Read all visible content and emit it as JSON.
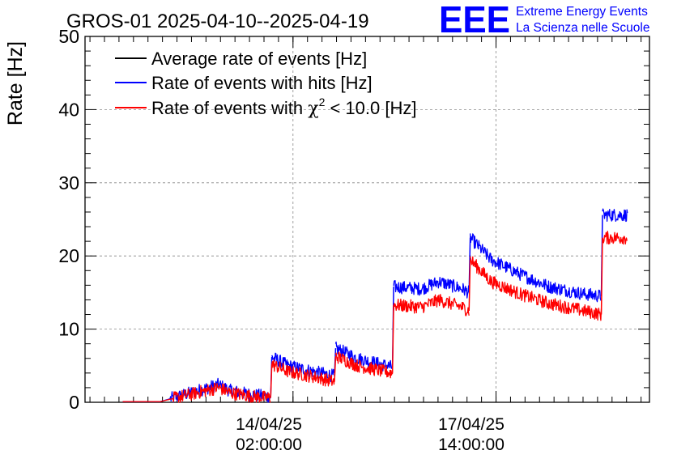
{
  "chart_data": {
    "type": "line",
    "title": "GROS-01 2025-04-10--2025-04-19",
    "ylabel": "Rate [Hz]",
    "xlabel": "",
    "ylim": [
      0,
      50
    ],
    "yticks": [
      0,
      10,
      20,
      30,
      40,
      50
    ],
    "xticks": [
      {
        "day": 3.585,
        "line1": "14/04/25",
        "line2": "02:00:00"
      },
      {
        "day": 7.085,
        "line1": "17/04/25",
        "line2": "14:00:00"
      }
    ],
    "xlim_days": [
      0,
      9.73
    ],
    "legend_position": "top-left",
    "legend": [
      {
        "label": "Average rate of events [Hz]",
        "color": "#000000"
      },
      {
        "label": "Rate of events with hits [Hz]",
        "color": "#0000ff"
      },
      {
        "label_prefix": "Rate of events with ",
        "label_symbol": "χ",
        "label_sup": "2",
        "label_suffix": " < 10.0 [Hz]",
        "color": "#ff0000"
      }
    ],
    "logo": {
      "text": "EEE",
      "line1": "Extreme Energy Events",
      "line2": "La Scienza nelle Scuole",
      "color": "#0000ff"
    },
    "series": [
      {
        "name": "Rate of events with hits [Hz]",
        "color": "#0000ff",
        "noise": 0.9,
        "segments": [
          [
            [
              0.65,
              0.1
            ],
            [
              1.3,
              0.1
            ],
            [
              2.3,
              2.4
            ],
            [
              2.5,
              1.6
            ],
            [
              2.9,
              1.0
            ],
            [
              3.2,
              0.8
            ]
          ],
          [
            [
              3.22,
              6.2
            ],
            [
              3.5,
              5.0
            ],
            [
              4.0,
              4.1
            ],
            [
              4.3,
              3.6
            ]
          ],
          [
            [
              4.32,
              7.4
            ],
            [
              4.7,
              6.0
            ],
            [
              5.1,
              5.2
            ],
            [
              5.3,
              4.8
            ]
          ],
          [
            [
              5.32,
              15.8
            ],
            [
              5.8,
              15.5
            ],
            [
              6.1,
              16.5
            ],
            [
              6.5,
              15.5
            ],
            [
              6.62,
              15.0
            ]
          ],
          [
            [
              6.64,
              22.5
            ],
            [
              7.0,
              19.5
            ],
            [
              7.5,
              17.5
            ],
            [
              8.0,
              15.8
            ],
            [
              8.6,
              14.8
            ],
            [
              8.9,
              14.5
            ]
          ],
          [
            [
              8.92,
              25.6
            ],
            [
              9.35,
              25.6
            ]
          ]
        ]
      },
      {
        "name": "Rate of events with χ2 < 10.0 [Hz]",
        "color": "#ff0000",
        "noise": 0.9,
        "segments": [
          [
            [
              0.65,
              0.1
            ],
            [
              1.3,
              0.1
            ],
            [
              2.3,
              2.0
            ],
            [
              2.5,
              1.3
            ],
            [
              2.9,
              0.8
            ],
            [
              3.2,
              0.6
            ]
          ],
          [
            [
              3.22,
              5.2
            ],
            [
              3.5,
              4.2
            ],
            [
              4.0,
              3.4
            ],
            [
              4.3,
              2.8
            ]
          ],
          [
            [
              4.32,
              6.3
            ],
            [
              4.7,
              5.0
            ],
            [
              5.1,
              4.3
            ],
            [
              5.3,
              4.0
            ]
          ],
          [
            [
              5.32,
              13.3
            ],
            [
              5.8,
              13.0
            ],
            [
              6.1,
              14.0
            ],
            [
              6.5,
              13.0
            ],
            [
              6.62,
              12.5
            ]
          ],
          [
            [
              6.64,
              19.5
            ],
            [
              7.0,
              16.5
            ],
            [
              7.5,
              14.8
            ],
            [
              8.0,
              13.5
            ],
            [
              8.6,
              12.5
            ],
            [
              8.9,
              12.0
            ]
          ],
          [
            [
              8.92,
              22.5
            ],
            [
              9.35,
              22.5
            ]
          ]
        ]
      }
    ]
  }
}
